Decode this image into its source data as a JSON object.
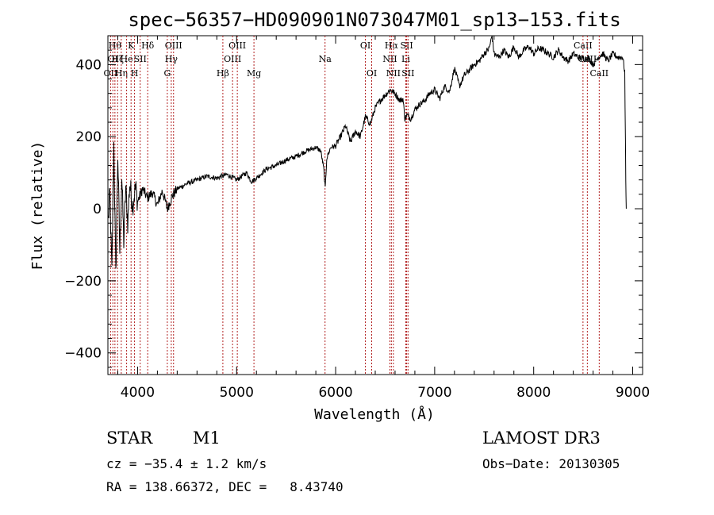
{
  "chart_data": {
    "type": "line",
    "title": "spec−56357−HD090901N073047M01_sp13−153.fits",
    "xlabel": "Wavelength (Å)",
    "ylabel": "Flux (relative)",
    "xlim": [
      3700,
      9100
    ],
    "ylim": [
      -460,
      480
    ],
    "x_ticks": [
      4000,
      5000,
      6000,
      7000,
      8000,
      9000
    ],
    "y_ticks": [
      -400,
      -200,
      0,
      200,
      400
    ],
    "x_minor_step": 200,
    "y_minor_step": 40,
    "grid": false,
    "series": [
      {
        "name": "spectrum",
        "color": "#000000",
        "points": [
          [
            3705,
            -30
          ],
          [
            3720,
            40
          ],
          [
            3740,
            -180
          ],
          [
            3760,
            180
          ],
          [
            3780,
            -190
          ],
          [
            3800,
            150
          ],
          [
            3820,
            -120
          ],
          [
            3840,
            90
          ],
          [
            3860,
            -90
          ],
          [
            3880,
            60
          ],
          [
            3900,
            -40
          ],
          [
            3920,
            70
          ],
          [
            3950,
            10
          ],
          [
            3980,
            60
          ],
          [
            4000,
            20
          ],
          [
            4050,
            55
          ],
          [
            4100,
            30
          ],
          [
            4150,
            45
          ],
          [
            4200,
            10
          ],
          [
            4250,
            50
          ],
          [
            4300,
            0
          ],
          [
            4350,
            35
          ],
          [
            4400,
            55
          ],
          [
            4500,
            70
          ],
          [
            4600,
            80
          ],
          [
            4700,
            90
          ],
          [
            4800,
            85
          ],
          [
            4900,
            95
          ],
          [
            5000,
            80
          ],
          [
            5100,
            100
          ],
          [
            5150,
            75
          ],
          [
            5200,
            85
          ],
          [
            5300,
            110
          ],
          [
            5400,
            120
          ],
          [
            5500,
            135
          ],
          [
            5600,
            145
          ],
          [
            5700,
            160
          ],
          [
            5800,
            170
          ],
          [
            5850,
            160
          ],
          [
            5880,
            110
          ],
          [
            5895,
            55
          ],
          [
            5910,
            140
          ],
          [
            5950,
            170
          ],
          [
            6000,
            175
          ],
          [
            6050,
            200
          ],
          [
            6100,
            230
          ],
          [
            6150,
            185
          ],
          [
            6200,
            215
          ],
          [
            6250,
            200
          ],
          [
            6300,
            255
          ],
          [
            6350,
            235
          ],
          [
            6400,
            280
          ],
          [
            6450,
            300
          ],
          [
            6500,
            315
          ],
          [
            6550,
            330
          ],
          [
            6600,
            320
          ],
          [
            6650,
            300
          ],
          [
            6680,
            305
          ],
          [
            6700,
            250
          ],
          [
            6720,
            260
          ],
          [
            6760,
            250
          ],
          [
            6800,
            275
          ],
          [
            6850,
            290
          ],
          [
            6900,
            300
          ],
          [
            6950,
            320
          ],
          [
            7000,
            330
          ],
          [
            7050,
            305
          ],
          [
            7100,
            340
          ],
          [
            7150,
            325
          ],
          [
            7200,
            390
          ],
          [
            7250,
            340
          ],
          [
            7300,
            370
          ],
          [
            7350,
            385
          ],
          [
            7400,
            400
          ],
          [
            7450,
            410
          ],
          [
            7500,
            430
          ],
          [
            7550,
            445
          ],
          [
            7580,
            480
          ],
          [
            7600,
            430
          ],
          [
            7650,
            420
          ],
          [
            7700,
            440
          ],
          [
            7750,
            420
          ],
          [
            7800,
            450
          ],
          [
            7850,
            420
          ],
          [
            7900,
            440
          ],
          [
            7950,
            450
          ],
          [
            8000,
            430
          ],
          [
            8050,
            445
          ],
          [
            8100,
            440
          ],
          [
            8150,
            430
          ],
          [
            8200,
            420
          ],
          [
            8250,
            440
          ],
          [
            8300,
            420
          ],
          [
            8350,
            410
          ],
          [
            8400,
            430
          ],
          [
            8450,
            420
          ],
          [
            8500,
            415
          ],
          [
            8550,
            420
          ],
          [
            8600,
            400
          ],
          [
            8650,
            420
          ],
          [
            8700,
            430
          ],
          [
            8750,
            410
          ],
          [
            8800,
            430
          ],
          [
            8850,
            420
          ],
          [
            8900,
            420
          ],
          [
            8920,
            380
          ],
          [
            8930,
            80
          ],
          [
            8935,
            0
          ]
        ]
      }
    ],
    "line_markers": [
      {
        "wl": 3727,
        "row": 2,
        "label": "OII"
      },
      {
        "wl": 3750,
        "row": 1,
        "label": "OI"
      },
      {
        "wl": 3771,
        "row": 0,
        "label": "Hθ"
      },
      {
        "wl": 3798,
        "row": 1,
        "label": "Hζ"
      },
      {
        "wl": 3835,
        "row": 2,
        "label": "Hη"
      },
      {
        "wl": 3889,
        "row": 1,
        "label": "He"
      },
      {
        "wl": 3934,
        "row": 0,
        "label": "K"
      },
      {
        "wl": 3969,
        "row": 2,
        "label": "H"
      },
      {
        "wl": 4026,
        "row": 1,
        "label": "SII"
      },
      {
        "wl": 4102,
        "row": 0,
        "label": "Hδ"
      },
      {
        "wl": 4300,
        "row": 2,
        "label": "G"
      },
      {
        "wl": 4340,
        "row": 1,
        "label": "Hγ"
      },
      {
        "wl": 4363,
        "row": 0,
        "label": "OIII"
      },
      {
        "wl": 4861,
        "row": 2,
        "label": "Hβ"
      },
      {
        "wl": 4959,
        "row": 1,
        "label": "OIII"
      },
      {
        "wl": 5007,
        "row": 0,
        "label": "OIII"
      },
      {
        "wl": 5175,
        "row": 2,
        "label": "Mg"
      },
      {
        "wl": 5893,
        "row": 1,
        "label": "Na"
      },
      {
        "wl": 6300,
        "row": 0,
        "label": "OI"
      },
      {
        "wl": 6364,
        "row": 2,
        "label": "OI"
      },
      {
        "wl": 6548,
        "row": 1,
        "label": "NII"
      },
      {
        "wl": 6563,
        "row": 0,
        "label": "Hα"
      },
      {
        "wl": 6583,
        "row": 2,
        "label": "NII"
      },
      {
        "wl": 6708,
        "row": 1,
        "label": "Li"
      },
      {
        "wl": 6717,
        "row": 0,
        "label": "SII"
      },
      {
        "wl": 6731,
        "row": 2,
        "label": "SII"
      },
      {
        "wl": 8498,
        "row": 0,
        "label": "CaII"
      },
      {
        "wl": 8542,
        "row": 1,
        "label": "CaII"
      },
      {
        "wl": 8662,
        "row": 2,
        "label": "CaII"
      }
    ],
    "marker_color": "#b22222"
  },
  "info": {
    "object_class": "STAR",
    "subclass": "M1",
    "survey": "LAMOST DR3",
    "cz": "cz = −35.4 ± 1.2 km/s",
    "obs_date": "Obs−Date: 20130305",
    "coords": "RA = 138.66372, DEC =   8.43740"
  }
}
